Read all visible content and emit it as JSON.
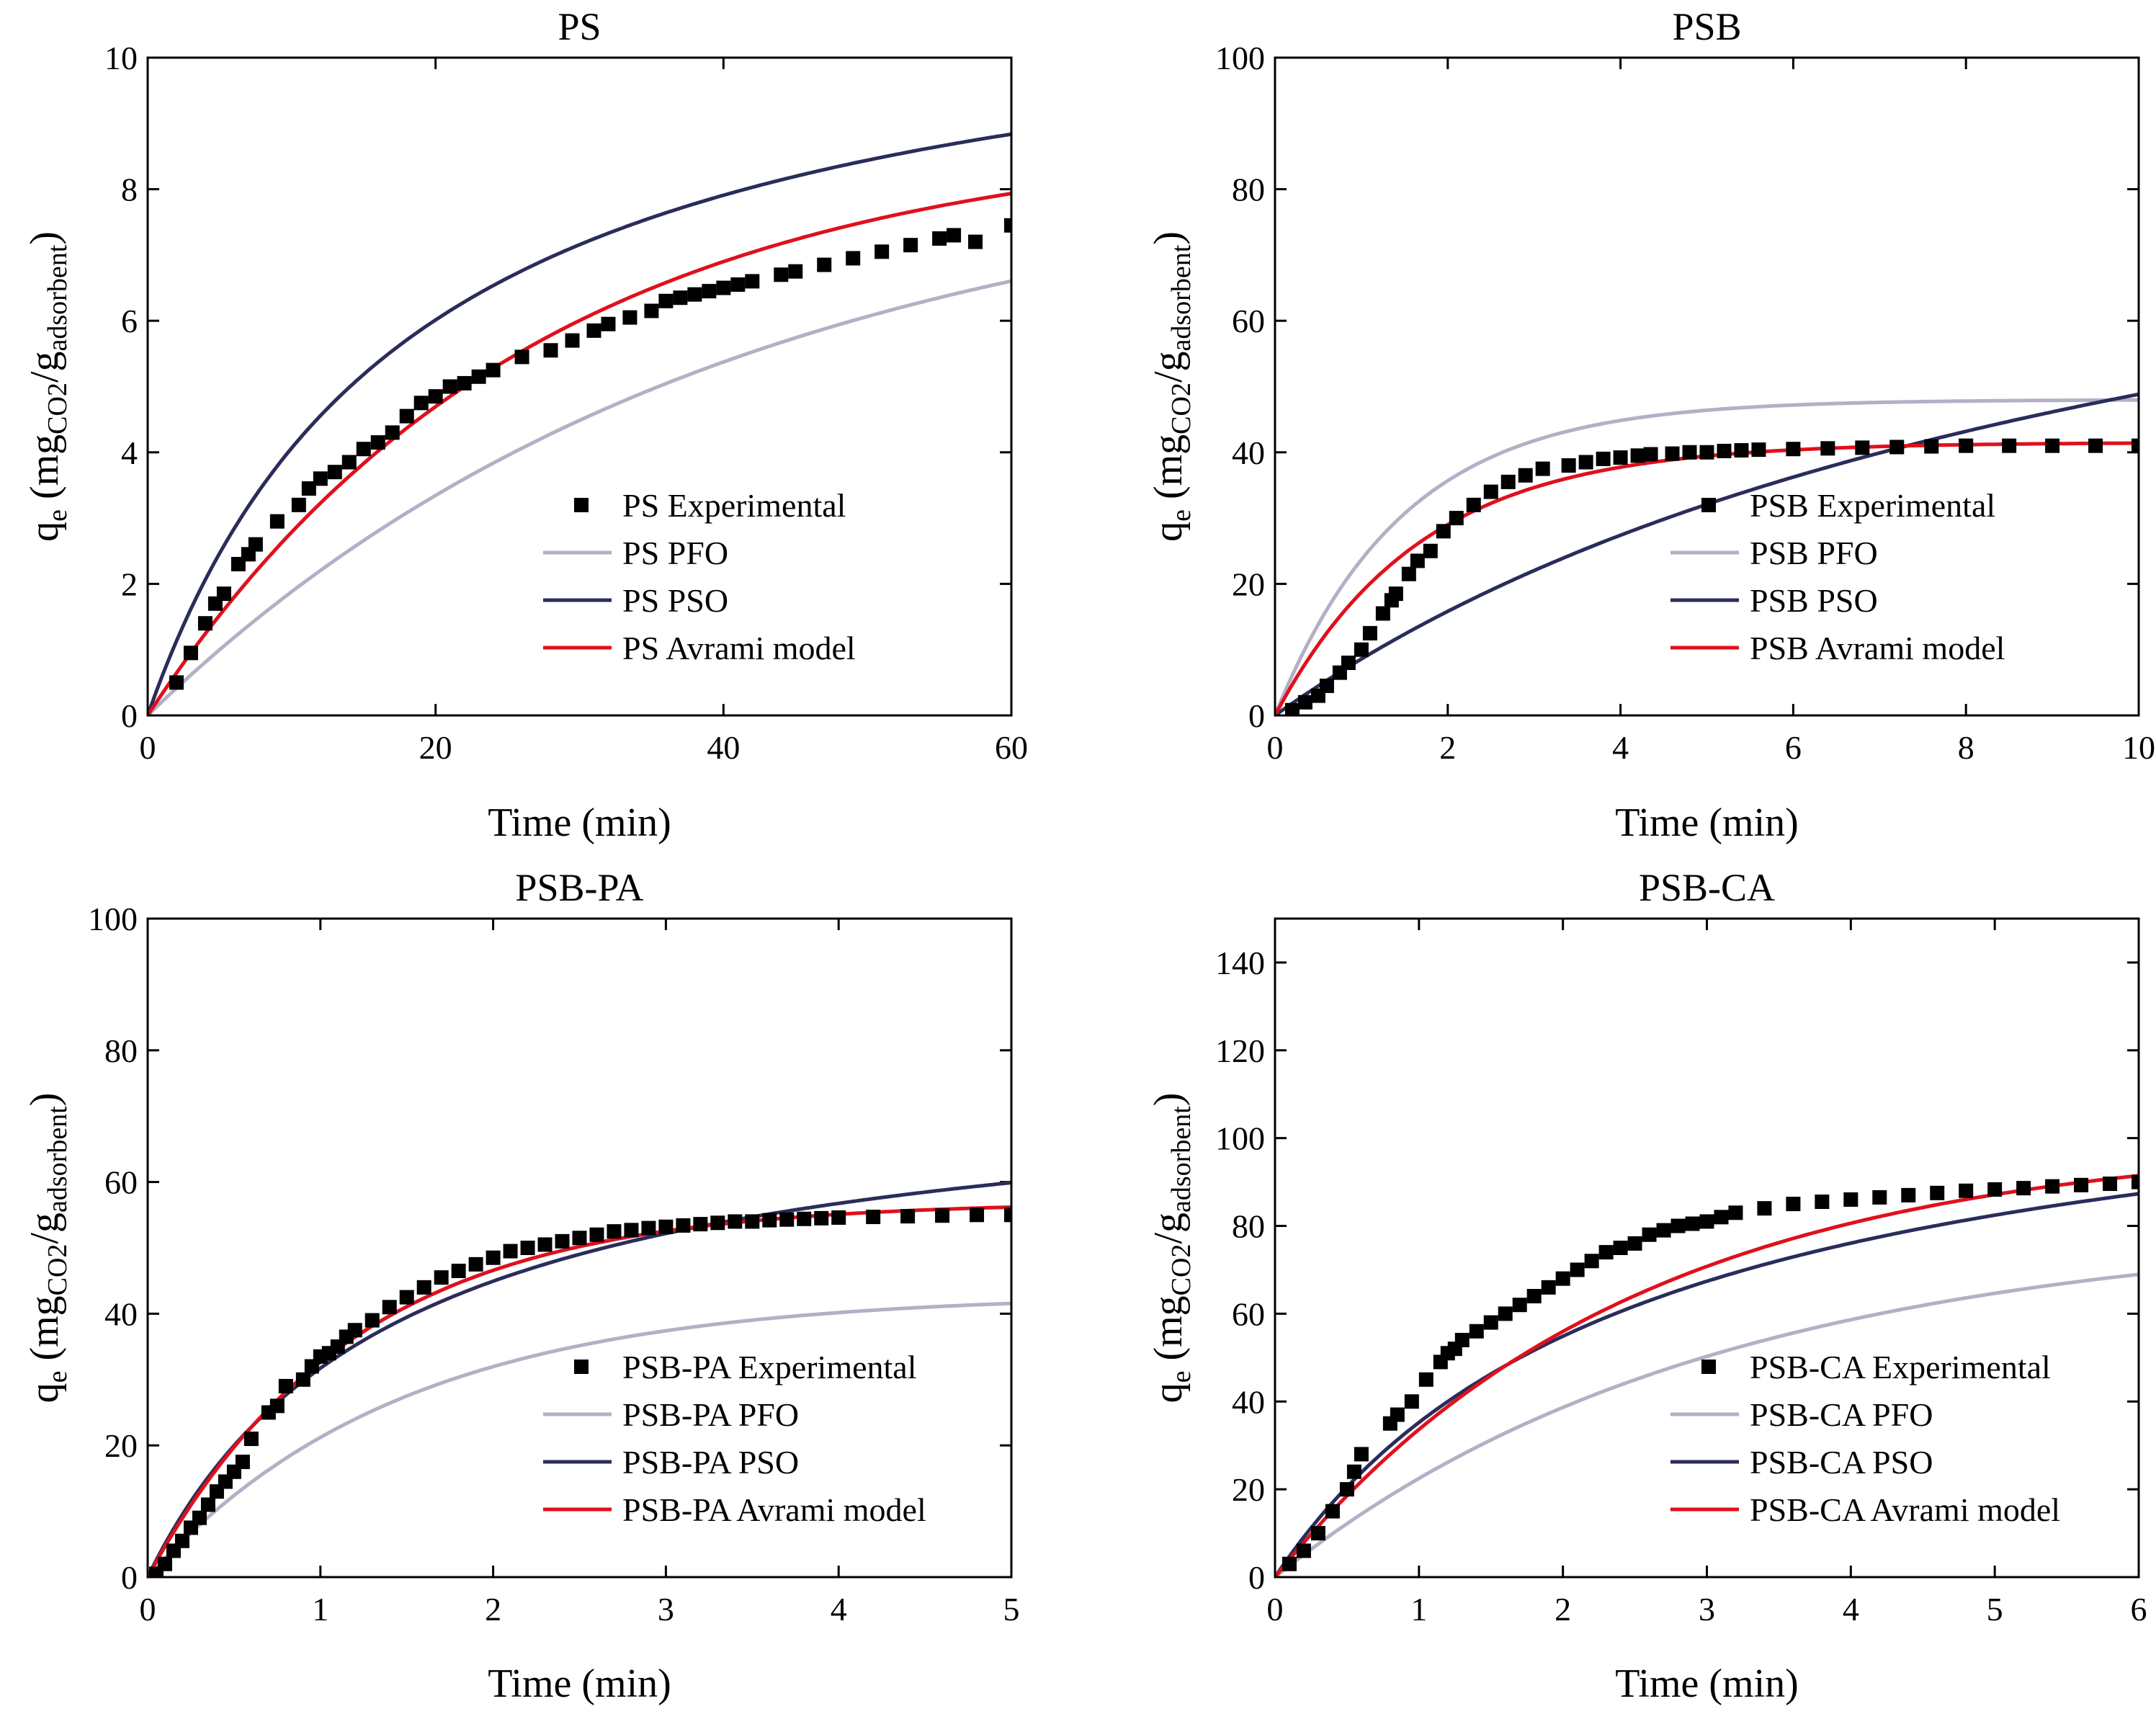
{
  "figure": {
    "colors": {
      "pfo": "#b3b0c6",
      "pso": "#2a2d5a",
      "avrami": "#e0101c",
      "experimental": "#000000"
    },
    "marker": "filled-square"
  },
  "chart_data": [
    {
      "type": "scatter+line",
      "title": "PS",
      "xlabel": "Time (min)",
      "ylabel": {
        "base": "q",
        "sub": "e",
        "text": " (mg",
        "sub2": "CO2",
        "slash": "/g",
        "sub3": "adsorbent",
        "close": ")"
      },
      "xlim": [
        0,
        60
      ],
      "ylim": [
        0,
        10
      ],
      "xticks": [
        0,
        20,
        40,
        60
      ],
      "yticks": [
        0,
        2,
        4,
        6,
        8,
        10
      ],
      "legend_position": "bottom-right",
      "series": [
        {
          "name": "PS Experimental",
          "kind": "markers",
          "x": [
            2,
            3,
            4,
            4.7,
            5.3,
            6.3,
            7,
            7.5,
            9,
            10.5,
            11.2,
            12,
            13,
            14,
            15,
            16,
            17,
            18,
            19,
            20,
            21,
            22,
            23,
            24,
            26,
            28,
            29.5,
            31,
            32,
            33.5,
            35,
            36,
            37,
            38,
            39,
            40,
            41,
            42,
            44,
            45,
            47,
            49,
            51,
            53,
            55,
            56,
            57.5,
            60
          ],
          "y": [
            0.5,
            0.95,
            1.4,
            1.7,
            1.85,
            2.3,
            2.45,
            2.6,
            2.95,
            3.2,
            3.45,
            3.6,
            3.7,
            3.85,
            4.05,
            4.15,
            4.3,
            4.55,
            4.75,
            4.85,
            5.0,
            5.05,
            5.15,
            5.25,
            5.45,
            5.55,
            5.7,
            5.85,
            5.95,
            6.05,
            6.15,
            6.3,
            6.35,
            6.4,
            6.45,
            6.5,
            6.55,
            6.6,
            6.7,
            6.75,
            6.85,
            6.95,
            7.05,
            7.15,
            7.25,
            7.3,
            7.2,
            7.45
          ]
        },
        {
          "name": "PS PFO",
          "kind": "line",
          "color_key": "pfo",
          "model": "pfo",
          "params": {
            "qe": 8.5,
            "k": 0.025
          }
        },
        {
          "name": "PS PSO",
          "kind": "line",
          "color_key": "pso",
          "model": "pso",
          "params": {
            "qe": 11.55,
            "k": 0.0047
          }
        },
        {
          "name": "PS Avrami model",
          "kind": "line",
          "color_key": "avrami",
          "model": "avrami",
          "params": {
            "qe": 8.85,
            "k": 0.0378,
            "n": 1
          }
        }
      ]
    },
    {
      "type": "scatter+line",
      "title": "PSB",
      "xlabel": "Time (min)",
      "ylabel": {
        "base": "q",
        "sub": "e",
        "text": " (mg",
        "sub2": "CO2",
        "slash": "/g",
        "sub3": "adsorbent",
        "close": ")"
      },
      "xlim": [
        0,
        10
      ],
      "ylim": [
        0,
        100
      ],
      "xticks": [
        0,
        2,
        4,
        6,
        8,
        10
      ],
      "yticks": [
        0,
        20,
        40,
        60,
        80,
        100
      ],
      "legend_position": "bottom-right",
      "series": [
        {
          "name": "PSB Experimental",
          "kind": "markers",
          "x": [
            0.2,
            0.35,
            0.5,
            0.6,
            0.75,
            0.85,
            1.0,
            1.1,
            1.25,
            1.35,
            1.4,
            1.55,
            1.65,
            1.8,
            1.95,
            2.1,
            2.3,
            2.5,
            2.7,
            2.9,
            3.1,
            3.4,
            3.6,
            3.8,
            4.0,
            4.2,
            4.35,
            4.6,
            4.8,
            5.0,
            5.2,
            5.4,
            5.6,
            6.0,
            6.4,
            6.8,
            7.2,
            7.6,
            8.0,
            8.5,
            9.0,
            9.5,
            10.0
          ],
          "y": [
            0.8,
            2,
            3,
            4.5,
            6.5,
            8,
            10,
            12.5,
            15.5,
            17.5,
            18.5,
            21.5,
            23.5,
            25,
            28,
            30,
            32,
            34,
            35.5,
            36.5,
            37.5,
            38,
            38.5,
            39,
            39.2,
            39.5,
            39.7,
            39.8,
            40,
            40,
            40.2,
            40.3,
            40.4,
            40.5,
            40.6,
            40.7,
            40.8,
            40.9,
            41,
            41,
            41,
            41,
            41
          ]
        },
        {
          "name": "PSB PFO",
          "kind": "line",
          "color_key": "pfo",
          "model": "pfo",
          "params": {
            "qe": 48,
            "k": 0.68
          }
        },
        {
          "name": "PSB PSO",
          "kind": "line",
          "color_key": "pso",
          "model": "pso",
          "params": {
            "qe": 102,
            "k": 0.0009
          }
        },
        {
          "name": "PSB Avrami model",
          "kind": "line",
          "color_key": "avrami",
          "model": "avrami",
          "params": {
            "qe": 41.5,
            "k": 0.6,
            "n": 1
          }
        }
      ]
    },
    {
      "type": "scatter+line",
      "title": "PSB-PA",
      "xlabel": "Time (min)",
      "ylabel": {
        "base": "q",
        "sub": "e",
        "text": " (mg",
        "sub2": "CO2",
        "slash": "/g",
        "sub3": "adsorbent",
        "close": ")"
      },
      "xlim": [
        0,
        5
      ],
      "ylim": [
        0,
        100
      ],
      "xticks": [
        0,
        1,
        2,
        3,
        4,
        5
      ],
      "yticks": [
        0,
        20,
        40,
        60,
        80,
        100
      ],
      "legend_position": "bottom-right",
      "series": [
        {
          "name": "PSB-PA Experimental",
          "kind": "markers",
          "x": [
            0.05,
            0.1,
            0.15,
            0.2,
            0.25,
            0.3,
            0.35,
            0.4,
            0.45,
            0.5,
            0.55,
            0.6,
            0.7,
            0.75,
            0.8,
            0.9,
            0.95,
            1.0,
            1.05,
            1.1,
            1.15,
            1.2,
            1.3,
            1.4,
            1.5,
            1.6,
            1.7,
            1.8,
            1.9,
            2.0,
            2.1,
            2.2,
            2.3,
            2.4,
            2.5,
            2.6,
            2.7,
            2.8,
            2.9,
            3.0,
            3.1,
            3.2,
            3.3,
            3.4,
            3.5,
            3.6,
            3.7,
            3.8,
            3.9,
            4.0,
            4.2,
            4.4,
            4.6,
            4.8,
            5.0
          ],
          "y": [
            0.5,
            2,
            4,
            5.5,
            7.5,
            9,
            11,
            13,
            14.5,
            16,
            17.5,
            21,
            25,
            26,
            29,
            30,
            32,
            33.5,
            34,
            35,
            36.5,
            37.5,
            39,
            41,
            42.5,
            44,
            45.5,
            46.5,
            47.5,
            48.5,
            49.5,
            50,
            50.5,
            51,
            51.5,
            52,
            52.5,
            52.7,
            53,
            53.2,
            53.4,
            53.6,
            53.8,
            54,
            54,
            54.2,
            54.3,
            54.4,
            54.5,
            54.6,
            54.7,
            54.8,
            54.9,
            55,
            55
          ]
        },
        {
          "name": "PSB-PA PFO",
          "kind": "line",
          "color_key": "pfo",
          "model": "pfo",
          "params": {
            "qe": 43,
            "k": 0.68
          }
        },
        {
          "name": "PSB-PA PSO",
          "kind": "line",
          "color_key": "pso",
          "model": "pso",
          "params": {
            "qe": 77,
            "k": 0.0091
          }
        },
        {
          "name": "PSB-PA Avrami model",
          "kind": "line",
          "color_key": "avrami",
          "model": "avrami",
          "params": {
            "qe": 57,
            "k": 0.85,
            "n": 1
          }
        }
      ]
    },
    {
      "type": "scatter+line",
      "title": "PSB-CA",
      "xlabel": "Time (min)",
      "ylabel": {
        "base": "q",
        "sub": "e",
        "text": " (mg",
        "sub2": "CO2",
        "slash": "/g",
        "sub3": "adsorbent",
        "close": ")"
      },
      "xlim": [
        0,
        6
      ],
      "ylim": [
        0,
        150
      ],
      "xticks": [
        0,
        1,
        2,
        3,
        4,
        5,
        6
      ],
      "yticks": [
        0,
        20,
        40,
        60,
        80,
        100,
        120,
        140
      ],
      "legend_position": "bottom-right",
      "series": [
        {
          "name": "PSB-CA Experimental",
          "kind": "markers",
          "x": [
            0.1,
            0.2,
            0.3,
            0.4,
            0.5,
            0.55,
            0.6,
            0.8,
            0.85,
            0.95,
            1.05,
            1.15,
            1.2,
            1.25,
            1.3,
            1.4,
            1.5,
            1.6,
            1.7,
            1.8,
            1.9,
            2.0,
            2.1,
            2.2,
            2.3,
            2.4,
            2.5,
            2.6,
            2.7,
            2.8,
            2.9,
            3.0,
            3.1,
            3.2,
            3.4,
            3.6,
            3.8,
            4.0,
            4.2,
            4.4,
            4.6,
            4.8,
            5.0,
            5.2,
            5.4,
            5.6,
            5.8,
            6.0
          ],
          "y": [
            3,
            6,
            10,
            15,
            20,
            24,
            28,
            35,
            37,
            40,
            45,
            49,
            51,
            52,
            54,
            56,
            58,
            60,
            62,
            64,
            66,
            68,
            70,
            72,
            74,
            75,
            76,
            78,
            79,
            80,
            80.5,
            81,
            82,
            83,
            84,
            85,
            85.5,
            86,
            86.5,
            87,
            87.5,
            88,
            88.3,
            88.6,
            89,
            89.3,
            89.6,
            90
          ]
        },
        {
          "name": "PSB-CA PFO",
          "kind": "line",
          "color_key": "pfo",
          "model": "pfo",
          "params": {
            "qe": 80,
            "k": 0.33
          }
        },
        {
          "name": "PSB-CA PSO",
          "kind": "line",
          "color_key": "pso",
          "model": "pso",
          "params": {
            "qe": 124,
            "k": 0.0032
          }
        },
        {
          "name": "PSB-CA Avrami model",
          "kind": "line",
          "color_key": "avrami",
          "model": "avrami",
          "params": {
            "qe": 100,
            "k": 0.41,
            "n": 1
          }
        }
      ]
    }
  ]
}
